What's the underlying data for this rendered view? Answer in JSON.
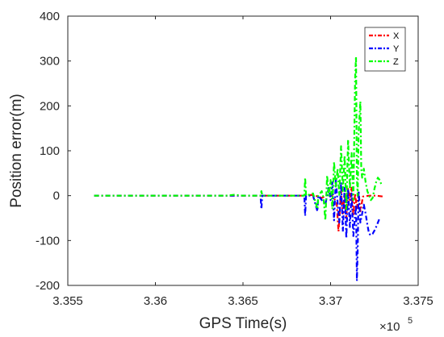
{
  "chart_data": {
    "type": "line",
    "title": "",
    "xlabel": "GPS Time(s)",
    "ylabel": "Position error(m)",
    "x_multiplier_label": "×10",
    "x_multiplier_exponent": "5",
    "xlim": [
      3.355,
      3.375
    ],
    "ylim": [
      -200,
      400
    ],
    "xticks": [
      3.355,
      3.36,
      3.365,
      3.37,
      3.375
    ],
    "xtick_labels": [
      "3.355",
      "3.36",
      "3.365",
      "3.37",
      "3.375"
    ],
    "yticks": [
      -200,
      -100,
      0,
      100,
      200,
      300,
      400
    ],
    "ytick_labels": [
      "-200",
      "-100",
      "0",
      "100",
      "200",
      "300",
      "400"
    ],
    "grid": false,
    "legend_position": "top-right",
    "series": [
      {
        "name": "X",
        "color": "#ff0000",
        "points": [
          [
            3.3565,
            0
          ],
          [
            3.36,
            0
          ],
          [
            3.365,
            0
          ],
          [
            3.3685,
            0
          ],
          [
            3.369,
            2
          ],
          [
            3.3695,
            -5
          ],
          [
            3.37,
            5
          ],
          [
            3.37035,
            -15
          ],
          [
            3.37045,
            -80
          ],
          [
            3.3706,
            10
          ],
          [
            3.3707,
            -40
          ],
          [
            3.3708,
            5
          ],
          [
            3.3709,
            -50
          ],
          [
            3.371,
            15
          ],
          [
            3.3711,
            -10
          ],
          [
            3.3712,
            20
          ],
          [
            3.3713,
            -45
          ],
          [
            3.3714,
            5
          ],
          [
            3.3715,
            -30
          ],
          [
            3.3716,
            10
          ],
          [
            3.3717,
            -35
          ],
          [
            3.37185,
            -2
          ],
          [
            3.3722,
            0
          ],
          [
            3.3726,
            0
          ],
          [
            3.373,
            -2
          ]
        ]
      },
      {
        "name": "Y",
        "color": "#0000ff",
        "points": [
          [
            3.3565,
            0
          ],
          [
            3.36,
            0
          ],
          [
            3.363,
            0
          ],
          [
            3.366,
            0
          ],
          [
            3.36605,
            -30
          ],
          [
            3.3661,
            0
          ],
          [
            3.367,
            0
          ],
          [
            3.3685,
            0
          ],
          [
            3.36855,
            -45
          ],
          [
            3.3686,
            0
          ],
          [
            3.369,
            0
          ],
          [
            3.36925,
            -35
          ],
          [
            3.3693,
            0
          ],
          [
            3.3697,
            -20
          ],
          [
            3.3699,
            20
          ],
          [
            3.37,
            -10
          ],
          [
            3.3701,
            30
          ],
          [
            3.3702,
            -55
          ],
          [
            3.3703,
            35
          ],
          [
            3.3704,
            -15
          ],
          [
            3.37045,
            -40
          ],
          [
            3.3705,
            -60
          ],
          [
            3.3706,
            30
          ],
          [
            3.3707,
            -80
          ],
          [
            3.3708,
            20
          ],
          [
            3.3709,
            -95
          ],
          [
            3.371,
            15
          ],
          [
            3.3711,
            -70
          ],
          [
            3.3712,
            5
          ],
          [
            3.3713,
            -90
          ],
          [
            3.37145,
            -20
          ],
          [
            3.3715,
            -190
          ],
          [
            3.37155,
            -120
          ],
          [
            3.3716,
            10
          ],
          [
            3.3717,
            -60
          ],
          [
            3.3718,
            -40
          ],
          [
            3.3719,
            -20
          ],
          [
            3.372,
            -40
          ],
          [
            3.3721,
            -65
          ],
          [
            3.3722,
            -85
          ],
          [
            3.3723,
            -88
          ],
          [
            3.3724,
            -85
          ],
          [
            3.3725,
            -78
          ],
          [
            3.3726,
            -70
          ],
          [
            3.3727,
            -60
          ],
          [
            3.3728,
            -50
          ]
        ]
      },
      {
        "name": "Z",
        "color": "#00ff00",
        "points": [
          [
            3.3565,
            0
          ],
          [
            3.36,
            0
          ],
          [
            3.364,
            0
          ],
          [
            3.3645,
            2
          ],
          [
            3.365,
            0
          ],
          [
            3.366,
            0
          ],
          [
            3.36605,
            10
          ],
          [
            3.3661,
            0
          ],
          [
            3.3672,
            0
          ],
          [
            3.3685,
            0
          ],
          [
            3.36855,
            40
          ],
          [
            3.3686,
            0
          ],
          [
            3.369,
            5
          ],
          [
            3.36925,
            -30
          ],
          [
            3.3693,
            0
          ],
          [
            3.3695,
            10
          ],
          [
            3.3696,
            -5
          ],
          [
            3.3697,
            -55
          ],
          [
            3.3698,
            45
          ],
          [
            3.3699,
            0
          ],
          [
            3.37,
            35
          ],
          [
            3.3701,
            -30
          ],
          [
            3.3702,
            75
          ],
          [
            3.3703,
            20
          ],
          [
            3.3704,
            60
          ],
          [
            3.3705,
            0
          ],
          [
            3.3706,
            110
          ],
          [
            3.3707,
            10
          ],
          [
            3.3708,
            90
          ],
          [
            3.3709,
            -30
          ],
          [
            3.371,
            125
          ],
          [
            3.3711,
            15
          ],
          [
            3.3712,
            95
          ],
          [
            3.3713,
            -10
          ],
          [
            3.3714,
            260
          ],
          [
            3.37145,
            310
          ],
          [
            3.3715,
            40
          ],
          [
            3.37155,
            0
          ],
          [
            3.3716,
            140
          ],
          [
            3.3717,
            210
          ],
          [
            3.37175,
            60
          ],
          [
            3.3718,
            40
          ],
          [
            3.3719,
            60
          ],
          [
            3.372,
            30
          ],
          [
            3.3721,
            10
          ],
          [
            3.3722,
            0
          ],
          [
            3.3723,
            -10
          ],
          [
            3.3724,
            -5
          ],
          [
            3.3725,
            15
          ],
          [
            3.3726,
            30
          ],
          [
            3.3727,
            40
          ],
          [
            3.3728,
            35
          ],
          [
            3.3729,
            25
          ]
        ]
      }
    ]
  }
}
